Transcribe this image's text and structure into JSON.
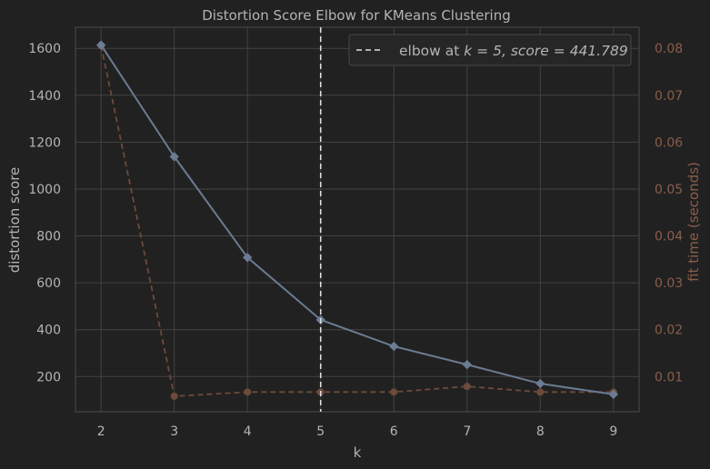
{
  "chart_data": {
    "type": "line",
    "title": "Distortion Score Elbow for KMeans Clustering",
    "xlabel": "k",
    "ylabel": "distortion score",
    "y2label": "fit time (seconds)",
    "x": [
      2,
      3,
      4,
      5,
      6,
      7,
      8,
      9
    ],
    "xticks": [
      "2",
      "3",
      "4",
      "5",
      "6",
      "7",
      "8",
      "9"
    ],
    "yticks": [
      "200",
      "400",
      "600",
      "800",
      "1000",
      "1200",
      "1400",
      "1600"
    ],
    "y2ticks": [
      "0.01",
      "0.02",
      "0.03",
      "0.04",
      "0.05",
      "0.06",
      "0.07",
      "0.08"
    ],
    "xlim": [
      1.65,
      9.35
    ],
    "ylim": [
      50,
      1690
    ],
    "y2lim": [
      0.0025,
      0.0845
    ],
    "grid": true,
    "legend_position": "top-right",
    "series": [
      {
        "axis": "left",
        "style": "solid",
        "marker": "diamond",
        "color": "#6b7b93",
        "values": [
          1614,
          1138,
          708,
          442,
          329,
          251,
          170,
          124
        ]
      },
      {
        "axis": "right",
        "style": "dashed",
        "marker": "circle",
        "color": "#6e4a3b",
        "values": [
          0.0806,
          0.0058,
          0.0067,
          0.0067,
          0.0067,
          0.0079,
          0.0067,
          0.0067
        ]
      }
    ],
    "elbow": {
      "k": 5,
      "legend_prefix": "elbow at ",
      "legend_math": "k = 5, score = 441.789",
      "color": "#dddddd"
    },
    "colors": {
      "background": "#212121",
      "grid": "#424242",
      "axis_text": "#b4b4b4",
      "right_axis_text": "#8a5e4b",
      "title_text": "#b4b4b4"
    }
  }
}
